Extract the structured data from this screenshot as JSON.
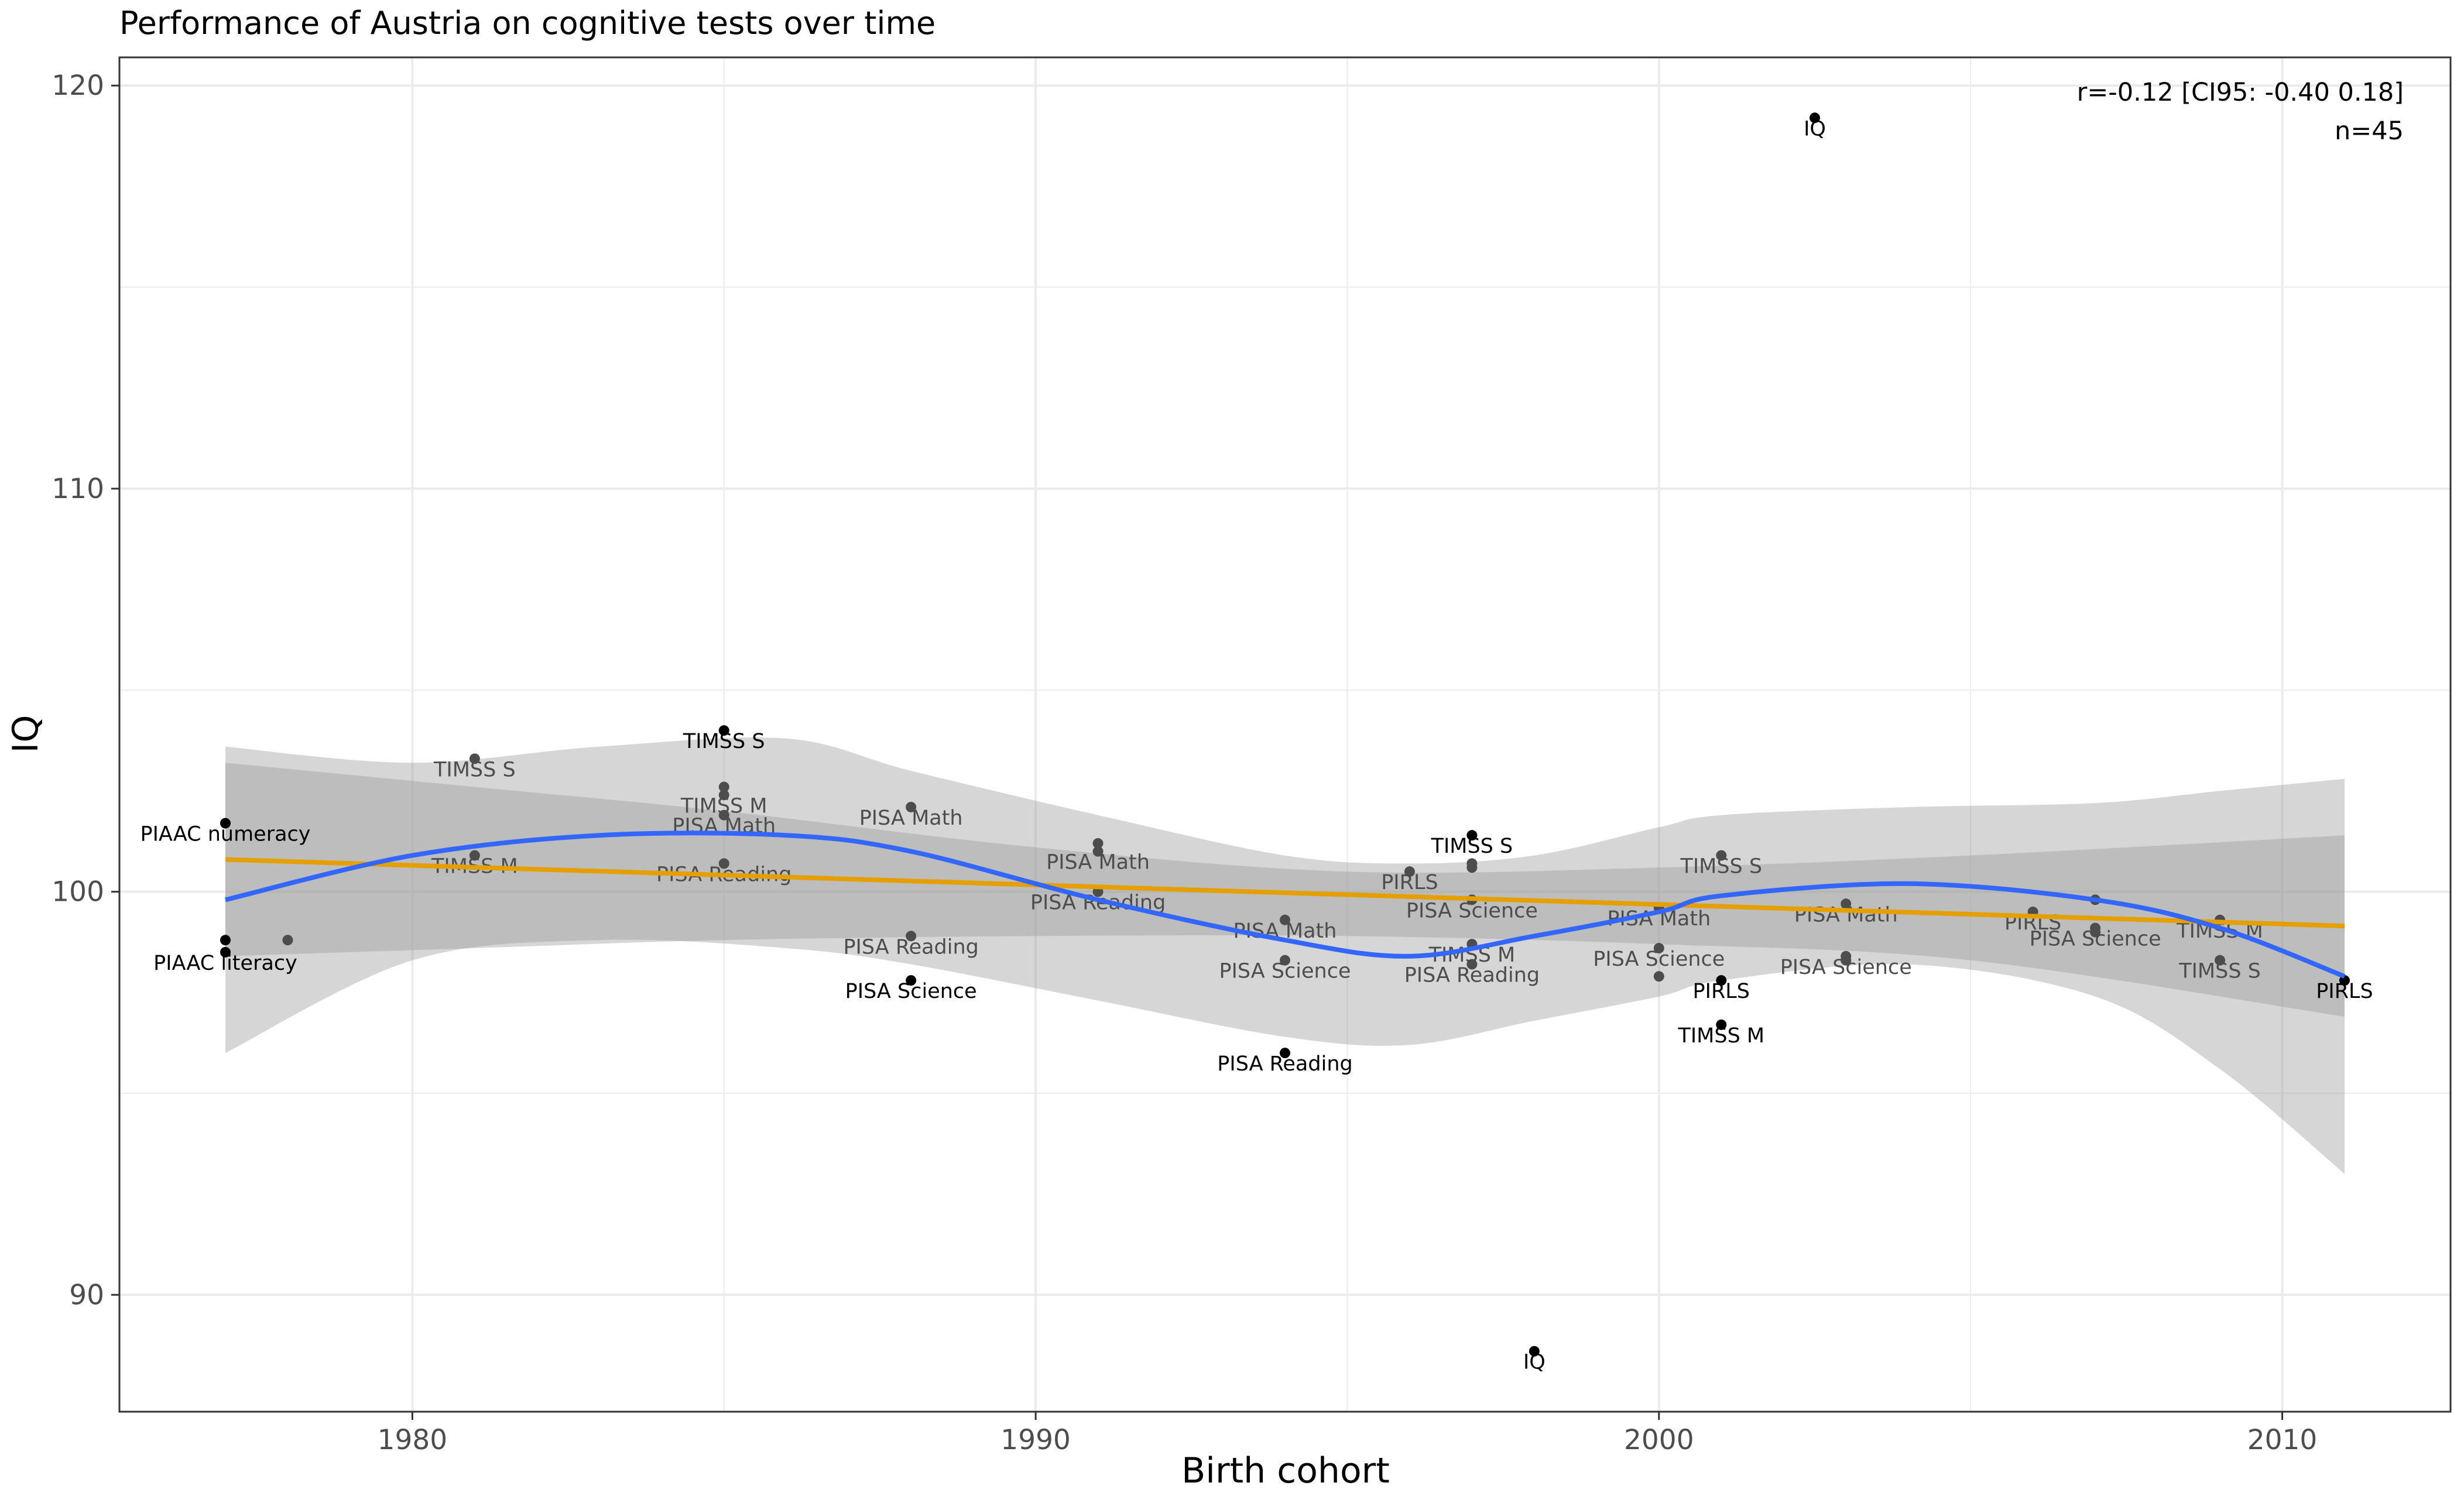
{
  "chart_data": {
    "type": "scatter",
    "title": "Performance of Austria on cognitive tests over time",
    "xlabel": "Birth cohort",
    "ylabel": "IQ",
    "xlim": [
      1975.3,
      2012.7
    ],
    "ylim": [
      87.1,
      120.7
    ],
    "x_ticks": [
      1980,
      1990,
      2000,
      2010
    ],
    "y_ticks": [
      90,
      100,
      110,
      120
    ],
    "grid": true,
    "annotation": [
      "r=-0.12 [CI95: -0.40 0.18]",
      "n=45"
    ],
    "points": [
      {
        "x": 1977,
        "y": 101.7,
        "label": "PIAAC numeracy",
        "weight": "dark"
      },
      {
        "x": 1977,
        "y": 98.8,
        "label": "",
        "weight": "dark"
      },
      {
        "x": 1977,
        "y": 98.5,
        "label": "PIAAC literacy",
        "weight": "dark"
      },
      {
        "x": 1978,
        "y": 98.8,
        "label": "",
        "weight": "mid"
      },
      {
        "x": 1981,
        "y": 103.3,
        "label": "TIMSS S",
        "weight": "mid"
      },
      {
        "x": 1981,
        "y": 100.9,
        "label": "TIMSS M",
        "weight": "mid"
      },
      {
        "x": 1985,
        "y": 104.0,
        "label": "TIMSS S",
        "weight": "dark"
      },
      {
        "x": 1985,
        "y": 102.6,
        "label": "",
        "weight": "mid"
      },
      {
        "x": 1985,
        "y": 102.4,
        "label": "TIMSS M",
        "weight": "mid"
      },
      {
        "x": 1985,
        "y": 101.9,
        "label": "PISA Math",
        "weight": "mid"
      },
      {
        "x": 1985,
        "y": 100.7,
        "label": "PISA Reading",
        "weight": "mid"
      },
      {
        "x": 1988,
        "y": 102.1,
        "label": "PISA Math",
        "weight": "mid"
      },
      {
        "x": 1988,
        "y": 98.9,
        "label": "PISA Reading",
        "weight": "mid"
      },
      {
        "x": 1988,
        "y": 97.8,
        "label": "PISA Science",
        "weight": "dark"
      },
      {
        "x": 1991,
        "y": 101.2,
        "label": "",
        "weight": "mid"
      },
      {
        "x": 1991,
        "y": 101.0,
        "label": "PISA Math",
        "weight": "mid"
      },
      {
        "x": 1991,
        "y": 100.0,
        "label": "PISA Reading",
        "weight": "mid"
      },
      {
        "x": 1994,
        "y": 99.3,
        "label": "PISA Math",
        "weight": "mid"
      },
      {
        "x": 1994,
        "y": 98.3,
        "label": "PISA Science",
        "weight": "mid"
      },
      {
        "x": 1994,
        "y": 96.0,
        "label": "PISA Reading",
        "weight": "dark"
      },
      {
        "x": 1996,
        "y": 100.5,
        "label": "PIRLS",
        "weight": "mid"
      },
      {
        "x": 1997,
        "y": 101.4,
        "label": "TIMSS S",
        "weight": "dark"
      },
      {
        "x": 1997,
        "y": 100.7,
        "label": "",
        "weight": "mid"
      },
      {
        "x": 1997,
        "y": 100.6,
        "label": "",
        "weight": "mid"
      },
      {
        "x": 1997,
        "y": 99.8,
        "label": "PISA Science",
        "weight": "mid"
      },
      {
        "x": 1997,
        "y": 98.7,
        "label": "TIMSS M",
        "weight": "mid"
      },
      {
        "x": 1997,
        "y": 98.2,
        "label": "PISA Reading",
        "weight": "mid"
      },
      {
        "x": 1998,
        "y": 88.6,
        "label": "IQ",
        "weight": "dark"
      },
      {
        "x": 2000,
        "y": 99.6,
        "label": "PISA Math",
        "weight": "mid"
      },
      {
        "x": 2000,
        "y": 98.6,
        "label": "PISA Science",
        "weight": "mid"
      },
      {
        "x": 2000,
        "y": 97.9,
        "label": "",
        "weight": "mid"
      },
      {
        "x": 2001,
        "y": 100.9,
        "label": "TIMSS S",
        "weight": "mid"
      },
      {
        "x": 2001,
        "y": 97.8,
        "label": "PIRLS",
        "weight": "dark"
      },
      {
        "x": 2001,
        "y": 96.7,
        "label": "TIMSS M",
        "weight": "dark"
      },
      {
        "x": 2002.5,
        "y": 119.2,
        "label": "IQ",
        "weight": "dark"
      },
      {
        "x": 2003,
        "y": 99.7,
        "label": "PISA Math",
        "weight": "mid"
      },
      {
        "x": 2003,
        "y": 98.4,
        "label": "PISA Science",
        "weight": "mid"
      },
      {
        "x": 2003,
        "y": 98.3,
        "label": "",
        "weight": "mid"
      },
      {
        "x": 2006,
        "y": 99.5,
        "label": "PIRLS",
        "weight": "mid"
      },
      {
        "x": 2007,
        "y": 99.8,
        "label": "",
        "weight": "mid"
      },
      {
        "x": 2007,
        "y": 99.1,
        "label": "PISA Science",
        "weight": "mid"
      },
      {
        "x": 2007,
        "y": 99.0,
        "label": "",
        "weight": "mid"
      },
      {
        "x": 2009,
        "y": 99.3,
        "label": "TIMSS M",
        "weight": "mid"
      },
      {
        "x": 2009,
        "y": 98.3,
        "label": "TIMSS S",
        "weight": "mid"
      },
      {
        "x": 2011,
        "y": 97.8,
        "label": "PIRLS",
        "weight": "dark"
      }
    ],
    "linear_fit": {
      "x": [
        1977,
        2011
      ],
      "y": [
        100.8,
        99.15
      ]
    },
    "linear_ci": {
      "x": [
        1977,
        1981,
        1985,
        1990,
        1995,
        2000,
        2005,
        2011
      ],
      "upper": [
        103.2,
        102.6,
        102.0,
        101.1,
        100.5,
        100.6,
        100.9,
        101.4
      ],
      "lower": [
        98.4,
        98.6,
        98.8,
        98.9,
        98.9,
        98.7,
        98.3,
        96.9
      ]
    },
    "smooth_fit": {
      "x": [
        1977,
        1980,
        1983,
        1986,
        1988,
        1991,
        1994,
        1996,
        1998,
        2000,
        2001,
        2004,
        2007,
        2009,
        2011
      ],
      "y": [
        99.8,
        100.9,
        101.4,
        101.4,
        101.0,
        99.8,
        98.8,
        98.4,
        98.9,
        99.5,
        99.9,
        100.2,
        99.8,
        99.1,
        97.9
      ],
      "upper": [
        103.6,
        103.2,
        103.6,
        103.8,
        103.0,
        101.9,
        100.9,
        100.7,
        100.9,
        101.6,
        101.9,
        102.1,
        102.2,
        102.5,
        102.8
      ],
      "lower": [
        96.0,
        98.3,
        98.8,
        98.6,
        98.2,
        97.3,
        96.4,
        96.2,
        96.8,
        97.4,
        97.8,
        98.2,
        97.4,
        95.6,
        93.0
      ]
    },
    "colors": {
      "smooth_line": "#3366ff",
      "linear_line": "#e69f00",
      "ribbon": "#999999",
      "point_dark": "#000000",
      "point_mid": "#4d4d4d",
      "grid": "#ebebeb",
      "panel_border": "#333333"
    }
  }
}
